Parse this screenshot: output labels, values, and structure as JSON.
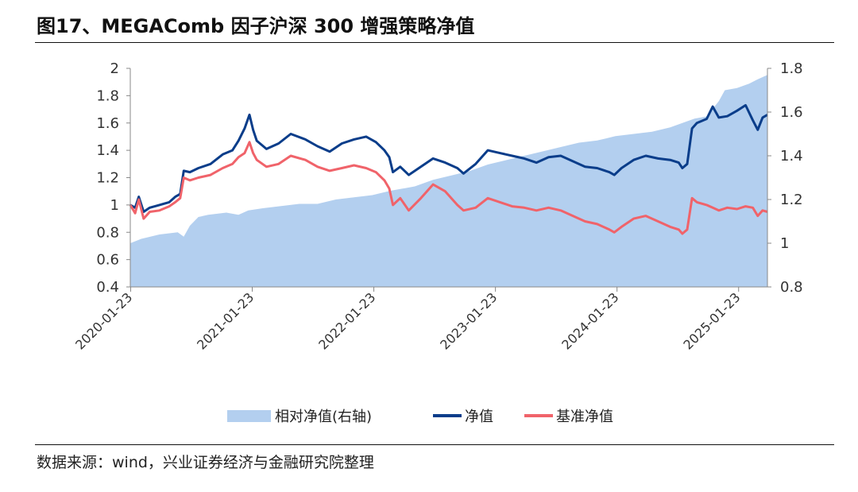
{
  "title": "图17、MEGAComb 因子沪深 300 增强策略净值",
  "source": "数据来源：wind，兴业证券经济与金融研究院整理",
  "colors": {
    "relative": "#b3cfef",
    "net": "#0a3d8a",
    "benchmark": "#f0636a",
    "axis": "#888888"
  },
  "chart_data": {
    "type": "line",
    "title": "图17、MEGAComb 因子沪深 300 增强策略净值",
    "xlabel": "",
    "ylabel": "",
    "x_ticks": [
      "2020-01-23",
      "2021-01-23",
      "2022-01-23",
      "2023-01-23",
      "2024-01-23",
      "2025-01-23"
    ],
    "x_range": [
      2020.06,
      2025.3
    ],
    "y_left": {
      "range": [
        0.4,
        2.0
      ],
      "ticks": [
        0.4,
        0.6,
        0.8,
        1,
        1.2,
        1.4,
        1.6,
        1.8,
        2
      ]
    },
    "y_right": {
      "range": [
        0.8,
        1.8
      ],
      "ticks": [
        0.8,
        1,
        1.2,
        1.4,
        1.6,
        1.8
      ]
    },
    "legend": [
      "相对净值(右轴)",
      "净值",
      "基准净值"
    ],
    "legend_position": "bottom",
    "series": [
      {
        "name": "相对净值(右轴)",
        "type": "area",
        "axis": "right",
        "points": [
          [
            2020.06,
            1.0
          ],
          [
            2020.15,
            1.02
          ],
          [
            2020.3,
            1.04
          ],
          [
            2020.45,
            1.05
          ],
          [
            2020.5,
            1.03
          ],
          [
            2020.55,
            1.08
          ],
          [
            2020.62,
            1.12
          ],
          [
            2020.7,
            1.13
          ],
          [
            2020.85,
            1.14
          ],
          [
            2020.95,
            1.13
          ],
          [
            2021.03,
            1.15
          ],
          [
            2021.15,
            1.16
          ],
          [
            2021.3,
            1.17
          ],
          [
            2021.45,
            1.18
          ],
          [
            2021.6,
            1.18
          ],
          [
            2021.75,
            1.2
          ],
          [
            2021.9,
            1.21
          ],
          [
            2022.05,
            1.22
          ],
          [
            2022.2,
            1.24
          ],
          [
            2022.3,
            1.25
          ],
          [
            2022.4,
            1.26
          ],
          [
            2022.55,
            1.29
          ],
          [
            2022.7,
            1.31
          ],
          [
            2022.85,
            1.33
          ],
          [
            2023.0,
            1.36
          ],
          [
            2023.15,
            1.38
          ],
          [
            2023.3,
            1.4
          ],
          [
            2023.45,
            1.42
          ],
          [
            2023.6,
            1.44
          ],
          [
            2023.75,
            1.46
          ],
          [
            2023.9,
            1.47
          ],
          [
            2024.05,
            1.49
          ],
          [
            2024.2,
            1.5
          ],
          [
            2024.35,
            1.51
          ],
          [
            2024.5,
            1.53
          ],
          [
            2024.6,
            1.55
          ],
          [
            2024.7,
            1.57
          ],
          [
            2024.8,
            1.58
          ],
          [
            2024.9,
            1.65
          ],
          [
            2024.95,
            1.7
          ],
          [
            2025.05,
            1.71
          ],
          [
            2025.15,
            1.73
          ],
          [
            2025.22,
            1.75
          ],
          [
            2025.3,
            1.77
          ]
        ]
      },
      {
        "name": "净值",
        "type": "line",
        "axis": "left",
        "points": [
          [
            2020.06,
            1.0
          ],
          [
            2020.1,
            0.98
          ],
          [
            2020.13,
            1.06
          ],
          [
            2020.17,
            0.95
          ],
          [
            2020.22,
            0.98
          ],
          [
            2020.3,
            1.0
          ],
          [
            2020.38,
            1.02
          ],
          [
            2020.43,
            1.06
          ],
          [
            2020.47,
            1.08
          ],
          [
            2020.5,
            1.25
          ],
          [
            2020.55,
            1.24
          ],
          [
            2020.62,
            1.27
          ],
          [
            2020.72,
            1.3
          ],
          [
            2020.82,
            1.37
          ],
          [
            2020.9,
            1.4
          ],
          [
            2020.95,
            1.47
          ],
          [
            2021.0,
            1.56
          ],
          [
            2021.04,
            1.66
          ],
          [
            2021.07,
            1.55
          ],
          [
            2021.1,
            1.47
          ],
          [
            2021.18,
            1.41
          ],
          [
            2021.28,
            1.45
          ],
          [
            2021.38,
            1.52
          ],
          [
            2021.5,
            1.48
          ],
          [
            2021.6,
            1.43
          ],
          [
            2021.7,
            1.39
          ],
          [
            2021.8,
            1.45
          ],
          [
            2021.9,
            1.48
          ],
          [
            2022.0,
            1.5
          ],
          [
            2022.08,
            1.46
          ],
          [
            2022.15,
            1.4
          ],
          [
            2022.19,
            1.35
          ],
          [
            2022.22,
            1.24
          ],
          [
            2022.28,
            1.28
          ],
          [
            2022.35,
            1.22
          ],
          [
            2022.45,
            1.28
          ],
          [
            2022.55,
            1.34
          ],
          [
            2022.65,
            1.31
          ],
          [
            2022.75,
            1.27
          ],
          [
            2022.8,
            1.23
          ],
          [
            2022.9,
            1.3
          ],
          [
            2023.0,
            1.4
          ],
          [
            2023.1,
            1.38
          ],
          [
            2023.2,
            1.36
          ],
          [
            2023.3,
            1.34
          ],
          [
            2023.4,
            1.31
          ],
          [
            2023.5,
            1.35
          ],
          [
            2023.6,
            1.36
          ],
          [
            2023.7,
            1.32
          ],
          [
            2023.8,
            1.28
          ],
          [
            2023.9,
            1.27
          ],
          [
            2024.0,
            1.24
          ],
          [
            2024.04,
            1.22
          ],
          [
            2024.1,
            1.27
          ],
          [
            2024.2,
            1.33
          ],
          [
            2024.3,
            1.36
          ],
          [
            2024.4,
            1.34
          ],
          [
            2024.5,
            1.33
          ],
          [
            2024.57,
            1.31
          ],
          [
            2024.6,
            1.27
          ],
          [
            2024.64,
            1.3
          ],
          [
            2024.68,
            1.56
          ],
          [
            2024.72,
            1.6
          ],
          [
            2024.8,
            1.63
          ],
          [
            2024.85,
            1.72
          ],
          [
            2024.9,
            1.64
          ],
          [
            2024.97,
            1.65
          ],
          [
            2025.05,
            1.69
          ],
          [
            2025.12,
            1.73
          ],
          [
            2025.18,
            1.62
          ],
          [
            2025.22,
            1.55
          ],
          [
            2025.26,
            1.64
          ],
          [
            2025.3,
            1.66
          ]
        ]
      },
      {
        "name": "基准净值",
        "type": "line",
        "axis": "left",
        "points": [
          [
            2020.06,
            1.0
          ],
          [
            2020.1,
            0.94
          ],
          [
            2020.13,
            1.04
          ],
          [
            2020.17,
            0.9
          ],
          [
            2020.22,
            0.95
          ],
          [
            2020.3,
            0.96
          ],
          [
            2020.38,
            0.99
          ],
          [
            2020.43,
            1.02
          ],
          [
            2020.47,
            1.05
          ],
          [
            2020.5,
            1.2
          ],
          [
            2020.55,
            1.18
          ],
          [
            2020.62,
            1.2
          ],
          [
            2020.72,
            1.22
          ],
          [
            2020.82,
            1.27
          ],
          [
            2020.9,
            1.3
          ],
          [
            2020.95,
            1.35
          ],
          [
            2021.0,
            1.38
          ],
          [
            2021.04,
            1.46
          ],
          [
            2021.07,
            1.38
          ],
          [
            2021.1,
            1.33
          ],
          [
            2021.18,
            1.28
          ],
          [
            2021.28,
            1.3
          ],
          [
            2021.38,
            1.36
          ],
          [
            2021.5,
            1.33
          ],
          [
            2021.6,
            1.28
          ],
          [
            2021.7,
            1.25
          ],
          [
            2021.8,
            1.27
          ],
          [
            2021.9,
            1.29
          ],
          [
            2022.0,
            1.27
          ],
          [
            2022.08,
            1.24
          ],
          [
            2022.15,
            1.18
          ],
          [
            2022.19,
            1.12
          ],
          [
            2022.22,
            1.0
          ],
          [
            2022.28,
            1.05
          ],
          [
            2022.35,
            0.96
          ],
          [
            2022.45,
            1.05
          ],
          [
            2022.55,
            1.15
          ],
          [
            2022.65,
            1.1
          ],
          [
            2022.75,
            1.0
          ],
          [
            2022.8,
            0.96
          ],
          [
            2022.9,
            0.98
          ],
          [
            2023.0,
            1.05
          ],
          [
            2023.1,
            1.02
          ],
          [
            2023.2,
            0.99
          ],
          [
            2023.3,
            0.98
          ],
          [
            2023.4,
            0.96
          ],
          [
            2023.5,
            0.98
          ],
          [
            2023.6,
            0.96
          ],
          [
            2023.7,
            0.92
          ],
          [
            2023.8,
            0.88
          ],
          [
            2023.9,
            0.86
          ],
          [
            2024.0,
            0.82
          ],
          [
            2024.04,
            0.8
          ],
          [
            2024.1,
            0.84
          ],
          [
            2024.2,
            0.9
          ],
          [
            2024.3,
            0.92
          ],
          [
            2024.4,
            0.88
          ],
          [
            2024.5,
            0.84
          ],
          [
            2024.57,
            0.82
          ],
          [
            2024.6,
            0.79
          ],
          [
            2024.64,
            0.82
          ],
          [
            2024.68,
            1.05
          ],
          [
            2024.72,
            1.02
          ],
          [
            2024.8,
            1.0
          ],
          [
            2024.85,
            0.98
          ],
          [
            2024.9,
            0.96
          ],
          [
            2024.97,
            0.98
          ],
          [
            2025.05,
            0.97
          ],
          [
            2025.12,
            0.99
          ],
          [
            2025.18,
            0.98
          ],
          [
            2025.22,
            0.92
          ],
          [
            2025.26,
            0.96
          ],
          [
            2025.3,
            0.95
          ]
        ]
      }
    ]
  }
}
